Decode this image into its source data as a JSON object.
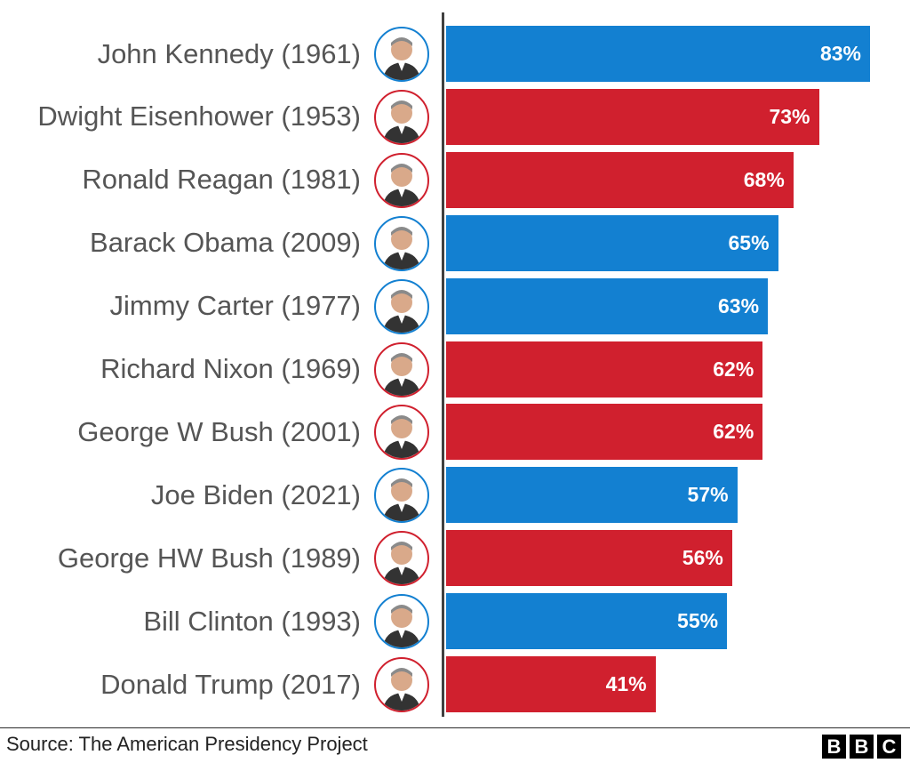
{
  "chart_data": {
    "type": "bar",
    "orientation": "horizontal",
    "categories": [
      "John Kennedy (1961)",
      "Dwight Eisenhower (1953)",
      "Ronald Reagan (1981)",
      "Barack Obama (2009)",
      "Jimmy Carter (1977)",
      "Richard Nixon (1969)",
      "George W Bush (2001)",
      "Joe Biden (2021)",
      "George HW Bush (1989)",
      "Bill Clinton (1993)",
      "Donald Trump (2017)"
    ],
    "values": [
      83,
      73,
      68,
      65,
      63,
      62,
      62,
      57,
      56,
      55,
      41
    ],
    "value_labels": [
      "83%",
      "73%",
      "68%",
      "65%",
      "63%",
      "62%",
      "62%",
      "57%",
      "56%",
      "55%",
      "41%"
    ],
    "party": [
      "dem",
      "rep",
      "rep",
      "dem",
      "dem",
      "rep",
      "rep",
      "dem",
      "rep",
      "dem",
      "rep"
    ],
    "colors": {
      "dem": "#1380d1",
      "rep": "#d0202e"
    },
    "xlim": [
      0,
      90
    ],
    "grid": false,
    "legend": "none"
  },
  "footer": {
    "source": "Source: The American Presidency Project",
    "logo": [
      "B",
      "B",
      "C"
    ]
  }
}
